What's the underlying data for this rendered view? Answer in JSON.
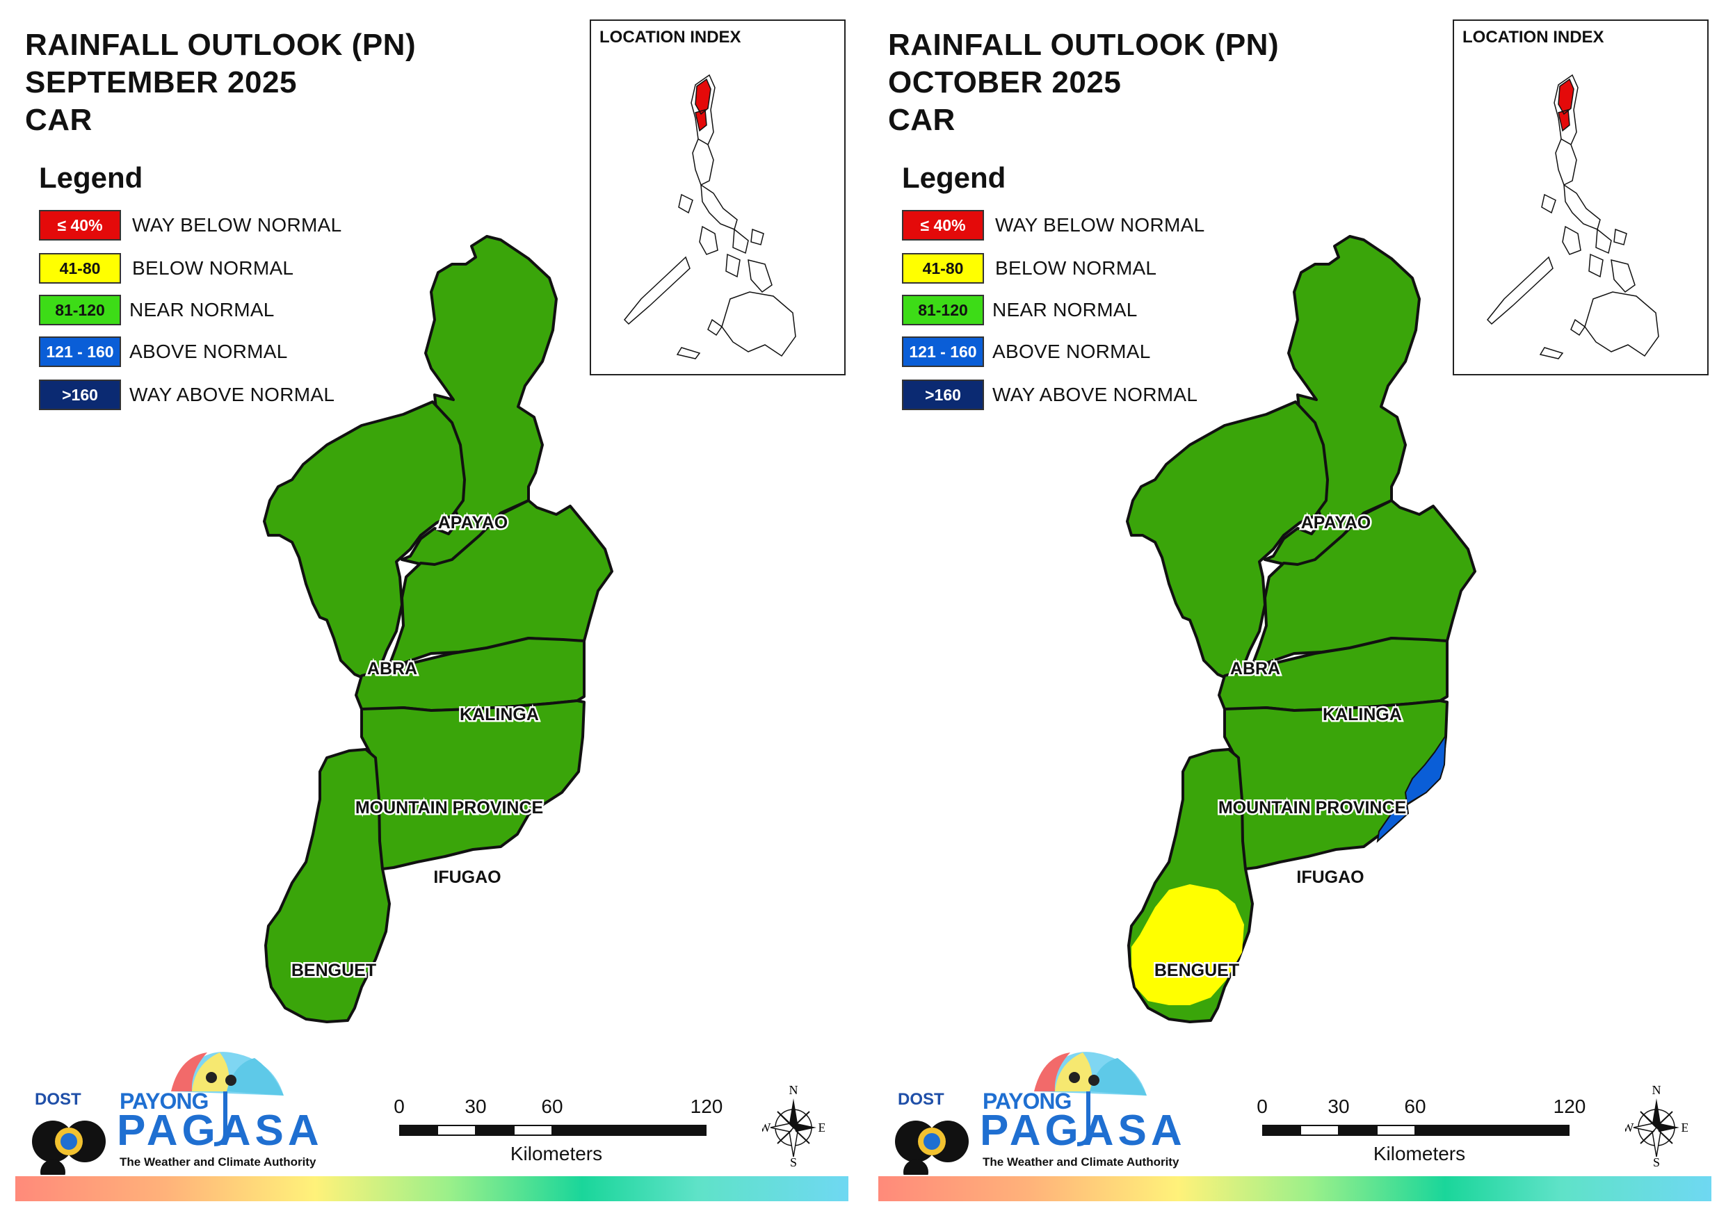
{
  "legend_items": [
    {
      "range": "≤ 40%",
      "label": "WAY BELOW NORMAL",
      "color": "#e40a0a",
      "text_color": "#ffffff"
    },
    {
      "range": "41-80",
      "label": "BELOW NORMAL",
      "color": "#ffff00",
      "text_color": "#111111"
    },
    {
      "range": "81-120",
      "label": "NEAR NORMAL",
      "color": "#3ddc17",
      "text_color": "#111111"
    },
    {
      "range": "121 - 160",
      "label": "ABOVE NORMAL",
      "color": "#0a5ed7",
      "text_color": "#ffffff"
    },
    {
      "range": ">160",
      "label": "WAY ABOVE NORMAL",
      "color": "#0b2a72",
      "text_color": "#ffffff"
    }
  ],
  "colors": {
    "near_normal_fill": "#3aa50a",
    "below_normal_fill": "#ffff00",
    "above_normal_fill": "#0a5ed7",
    "border": "#111111"
  },
  "panels": [
    {
      "title_line1": "RAINFALL OUTLOOK (PN)",
      "title_line2": "SEPTEMBER 2025",
      "title_line3": "CAR",
      "legend_title": "Legend",
      "index_title": "LOCATION INDEX",
      "provinces": {
        "apayao": "APAYAO",
        "abra": "ABRA",
        "kalinga": "KALINGA",
        "mountain_province": "MOUNTAIN PROVINCE",
        "ifugao": "IFUGAO",
        "benguet": "BENGUET"
      },
      "overlays": {
        "benguet_below_normal": false,
        "ifugao_above_normal": false
      },
      "scale": {
        "ticks": [
          "0",
          "30",
          "60",
          "120"
        ],
        "unit": "Kilometers"
      },
      "compass": {
        "n": "N",
        "s": "S",
        "e": "E",
        "w": "W"
      },
      "logo": {
        "dost": "DOST",
        "payong": "PAYONG",
        "pagasa": "PAGASA",
        "tagline": "The Weather and Climate Authority"
      }
    },
    {
      "title_line1": "RAINFALL OUTLOOK (PN)",
      "title_line2": "OCTOBER 2025",
      "title_line3": "CAR",
      "legend_title": "Legend",
      "index_title": "LOCATION INDEX",
      "provinces": {
        "apayao": "APAYAO",
        "abra": "ABRA",
        "kalinga": "KALINGA",
        "mountain_province": "MOUNTAIN PROVINCE",
        "ifugao": "IFUGAO",
        "benguet": "BENGUET"
      },
      "overlays": {
        "benguet_below_normal": true,
        "ifugao_above_normal": true
      },
      "scale": {
        "ticks": [
          "0",
          "30",
          "60",
          "120"
        ],
        "unit": "Kilometers"
      },
      "compass": {
        "n": "N",
        "s": "S",
        "e": "E",
        "w": "W"
      },
      "logo": {
        "dost": "DOST",
        "payong": "PAYONG",
        "pagasa": "PAGASA",
        "tagline": "The Weather and Climate Authority"
      }
    }
  ]
}
